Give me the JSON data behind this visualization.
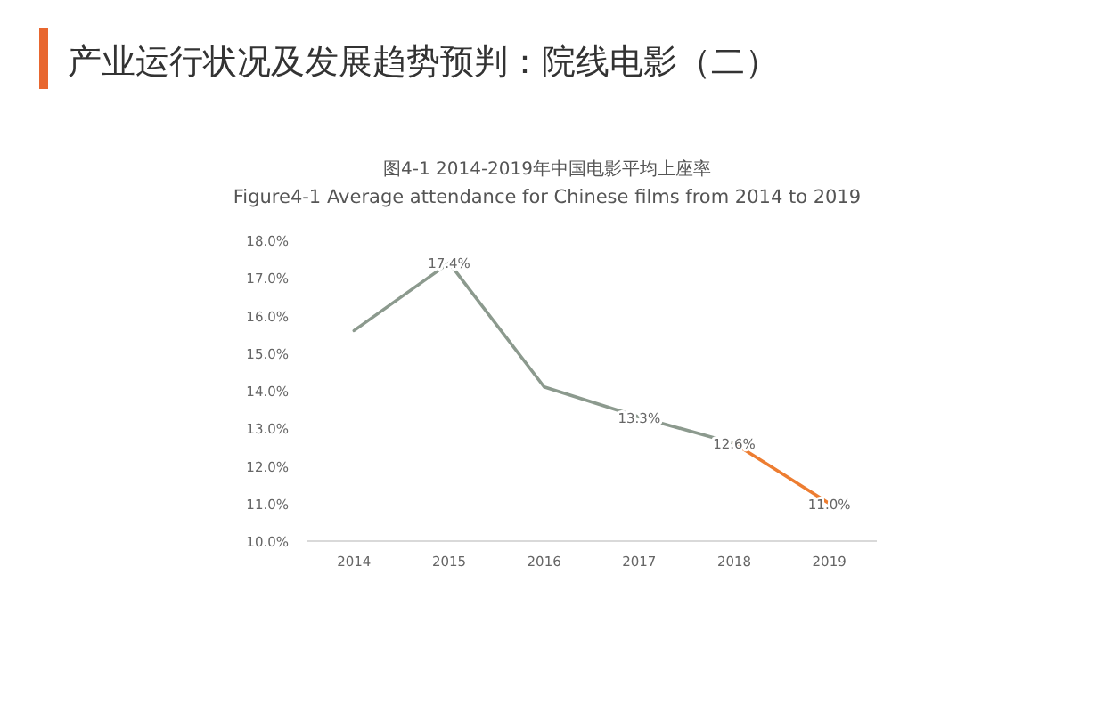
{
  "chart_data": {
    "type": "line",
    "title": "产业运行状况及发展趋势预判：院线电影（二）",
    "subtitle": "图4-1 2014-2019年中国电影平均上座率",
    "annotations": [
      "Figure4-1 Average attendance for Chinese films from 2014 to 2019"
    ],
    "categories": [
      "2014",
      "2015",
      "2016",
      "2017",
      "2018",
      "2019"
    ],
    "series": [
      {
        "color": "#8c9a8e",
        "values": [
          15.6,
          17.4,
          14.1,
          13.3,
          12.6,
          null
        ],
        "value_labels": [
          null,
          "17.4%",
          null,
          "13.3%",
          "12.6%",
          null
        ]
      },
      {
        "color": "#ed7d31",
        "values": [
          null,
          null,
          null,
          null,
          12.6,
          11.0
        ],
        "value_labels": [
          null,
          null,
          null,
          null,
          null,
          "11.0%"
        ]
      }
    ],
    "ylim": [
      10,
      18
    ],
    "yticks": [
      {
        "value": 10,
        "label": "10.0%"
      },
      {
        "value": 11,
        "label": "11.0%"
      },
      {
        "value": 12,
        "label": "12.0%"
      },
      {
        "value": 13,
        "label": "13.0%"
      },
      {
        "value": 14,
        "label": "14.0%"
      },
      {
        "value": 15,
        "label": "15.0%"
      },
      {
        "value": 16,
        "label": "16.0%"
      },
      {
        "value": 17,
        "label": "17.0%"
      },
      {
        "value": 18,
        "label": "18.0%"
      }
    ]
  }
}
